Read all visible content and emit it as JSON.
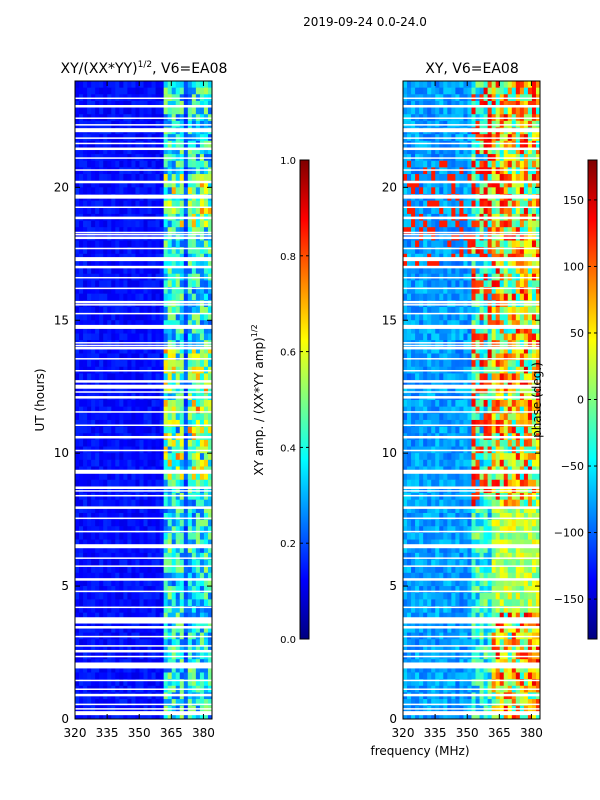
{
  "figure": {
    "suptitle": "2019-09-24 0.0-24.0",
    "shared_xlabel": "frequency (MHz)"
  },
  "chart_data": [
    {
      "type": "heatmap",
      "title_main": "XY/(XX*YY)",
      "title_sup": "1/2",
      "title_tail": ", V6=EA08",
      "xlabel": "frequency (MHz)",
      "ylabel": "UT (hours)",
      "xlim": [
        320,
        384
      ],
      "ylim": [
        0,
        24
      ],
      "xticks": [
        320,
        335,
        350,
        365,
        380
      ],
      "yticks": [
        0,
        5,
        10,
        15,
        20
      ],
      "rfi_start_mhz": 361,
      "bright_hours": [
        [
          9,
          14
        ],
        [
          18.5,
          20.5
        ]
      ],
      "colorbar": {
        "label_main": "XY amp. / (XX*YY amp)",
        "label_sup": "1/2",
        "range": [
          0.0,
          1.0
        ],
        "ticks": [
          "0.0",
          "0.2",
          "0.4",
          "0.6",
          "0.8",
          "1.0"
        ],
        "tick_values": [
          0.0,
          0.2,
          0.4,
          0.6,
          0.8,
          1.0
        ],
        "colormap": "jet"
      }
    },
    {
      "type": "heatmap",
      "title": "XY, V6=EA08",
      "xlabel": "frequency (MHz)",
      "xlim": [
        320,
        384
      ],
      "ylim": [
        0,
        24
      ],
      "xticks": [
        320,
        335,
        350,
        365,
        380
      ],
      "yticks": [
        0,
        5,
        10,
        15,
        20
      ],
      "colorbar": {
        "label": "phase (deg.)",
        "range": [
          -180,
          180
        ],
        "ticks": [
          "−150",
          "−100",
          "−50",
          "0",
          "50",
          "100",
          "150"
        ],
        "tick_values": [
          -150,
          -100,
          -50,
          0,
          50,
          100,
          150
        ],
        "colormap": "jet"
      }
    }
  ],
  "data_gaps_ut": [
    0.22,
    0.38,
    0.55,
    0.9,
    1.12,
    1.45,
    1.95,
    2.05,
    2.35,
    2.55,
    2.75,
    3.1,
    3.45,
    3.62,
    3.7,
    3.78,
    4.2,
    4.8,
    5.25,
    5.75,
    6.05,
    6.5,
    7.05,
    7.55,
    7.95,
    8.4,
    8.58,
    8.7,
    9.3,
    10.1,
    10.6,
    11.05,
    11.55,
    12.1,
    12.3,
    12.5,
    12.7,
    13.1,
    13.55,
    13.95,
    14.05,
    14.15,
    14.75,
    15.25,
    15.58,
    15.68,
    16.2,
    16.6,
    17.0,
    17.3,
    17.7,
    18.1,
    18.22,
    18.3,
    18.85,
    19.25,
    19.65,
    20.2,
    20.65,
    21.1,
    21.45,
    21.65,
    21.85,
    22.15,
    22.35,
    22.6,
    23.05,
    23.35
  ]
}
